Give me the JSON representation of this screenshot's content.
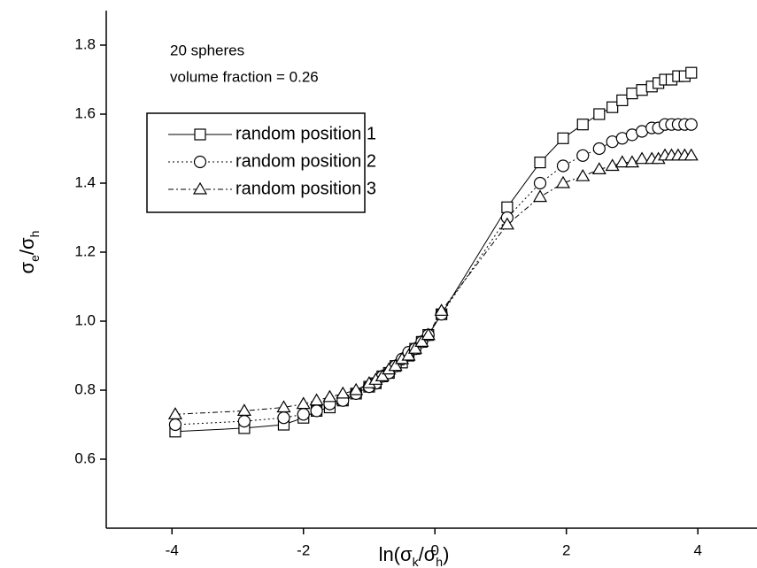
{
  "chart_data": {
    "type": "line",
    "annotations": [
      "20 spheres",
      "volume fraction = 0.26"
    ],
    "xlabel": [
      "ln(σ",
      "k",
      "/σ",
      "h",
      ")"
    ],
    "ylabel": [
      "σ",
      "e",
      "/σ",
      "h"
    ],
    "x": [
      -3.95,
      -2.9,
      -2.3,
      -2.0,
      -1.8,
      -1.6,
      -1.4,
      -1.2,
      -1.0,
      -0.9,
      -0.8,
      -0.7,
      -0.6,
      -0.5,
      -0.4,
      -0.3,
      -0.2,
      -0.1,
      0.1,
      1.1,
      1.6,
      1.95,
      2.25,
      2.5,
      2.7,
      2.85,
      3.0,
      3.15,
      3.3,
      3.4,
      3.5,
      3.6,
      3.7,
      3.8,
      3.9
    ],
    "series": [
      {
        "name": "random position 1",
        "color": "#000000",
        "marker": "square",
        "dash": "solid",
        "values": [
          0.68,
          0.69,
          0.7,
          0.72,
          0.74,
          0.75,
          0.77,
          0.79,
          0.81,
          0.82,
          0.84,
          0.85,
          0.87,
          0.88,
          0.9,
          0.92,
          0.94,
          0.96,
          1.02,
          1.33,
          1.46,
          1.53,
          1.57,
          1.6,
          1.62,
          1.64,
          1.66,
          1.67,
          1.68,
          1.69,
          1.7,
          1.7,
          1.71,
          1.71,
          1.72
        ]
      },
      {
        "name": "random position 2",
        "color": "#000000",
        "marker": "circle",
        "dash": "dotted",
        "values": [
          0.7,
          0.71,
          0.72,
          0.73,
          0.74,
          0.76,
          0.77,
          0.79,
          0.81,
          0.82,
          0.84,
          0.85,
          0.87,
          0.89,
          0.91,
          0.92,
          0.94,
          0.96,
          1.02,
          1.3,
          1.4,
          1.45,
          1.48,
          1.5,
          1.52,
          1.53,
          1.54,
          1.55,
          1.56,
          1.56,
          1.57,
          1.57,
          1.57,
          1.57,
          1.57
        ]
      },
      {
        "name": "random position 3",
        "color": "#000000",
        "marker": "triangle",
        "dash": "dashdot",
        "values": [
          0.73,
          0.74,
          0.75,
          0.76,
          0.77,
          0.78,
          0.79,
          0.8,
          0.82,
          0.83,
          0.84,
          0.86,
          0.87,
          0.89,
          0.9,
          0.92,
          0.94,
          0.96,
          1.03,
          1.28,
          1.36,
          1.4,
          1.42,
          1.44,
          1.45,
          1.46,
          1.46,
          1.47,
          1.47,
          1.47,
          1.48,
          1.48,
          1.48,
          1.48,
          1.48
        ]
      }
    ],
    "xlim": [
      -5,
      4.9
    ],
    "xticks": [
      -4,
      -2,
      0,
      2,
      4
    ],
    "ylim": [
      0.4,
      1.9
    ],
    "yticks": [
      0.6,
      0.8,
      {
        "value": 1.0,
        "label": "1.0"
      },
      1.2,
      1.4,
      1.6,
      1.8
    ],
    "grid": false,
    "legend": "upper left"
  }
}
